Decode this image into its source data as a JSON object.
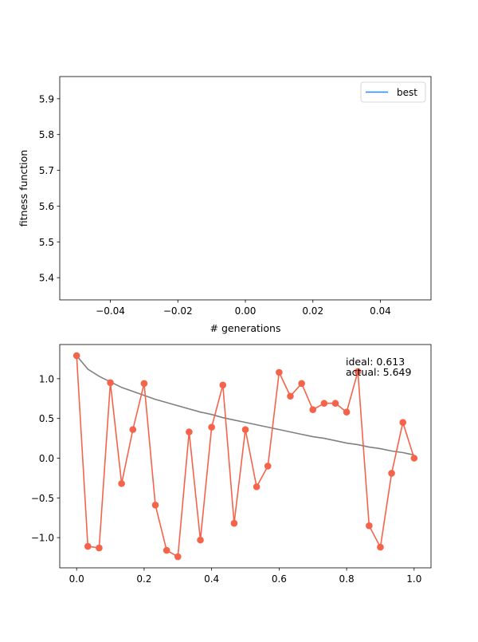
{
  "chart_data": [
    {
      "type": "line",
      "title": "",
      "xlabel": "# generations",
      "ylabel": "fitness function",
      "xlim": [
        -0.055,
        0.055
      ],
      "ylim": [
        5.338,
        5.962
      ],
      "xticks": [
        -0.04,
        -0.02,
        0.0,
        0.02,
        0.04
      ],
      "xtick_labels": [
        "−0.04",
        "−0.02",
        "0.00",
        "0.02",
        "0.04"
      ],
      "yticks": [
        5.4,
        5.5,
        5.6,
        5.7,
        5.8,
        5.9
      ],
      "ytick_labels": [
        "5.4",
        "5.5",
        "5.6",
        "5.7",
        "5.8",
        "5.9"
      ],
      "grid": false,
      "legend_position": "upper-right",
      "series": [
        {
          "name": "best",
          "color": "#1f8cff",
          "x": [],
          "y": []
        }
      ]
    },
    {
      "type": "line",
      "title": "",
      "xlabel": "",
      "ylabel": "",
      "xlim": [
        -0.05,
        1.05
      ],
      "ylim": [
        -1.38,
        1.43
      ],
      "xticks": [
        0.0,
        0.2,
        0.4,
        0.6,
        0.8,
        1.0
      ],
      "xtick_labels": [
        "0.0",
        "0.2",
        "0.4",
        "0.6",
        "0.8",
        "1.0"
      ],
      "yticks": [
        -1.0,
        -0.5,
        0.0,
        0.5,
        1.0
      ],
      "ytick_labels": [
        "−1.0",
        "−0.5",
        "0.0",
        "0.5",
        "1.0"
      ],
      "grid": false,
      "annotations": [
        "ideal: 0.613",
        "actual: 5.649"
      ],
      "series": [
        {
          "color": "#808080",
          "marker": "none",
          "x": [
            0.0,
            0.0333,
            0.0667,
            0.1,
            0.1333,
            0.1667,
            0.2,
            0.2333,
            0.2667,
            0.3,
            0.3333,
            0.3667,
            0.4,
            0.4333,
            0.4667,
            0.5,
            0.5333,
            0.5667,
            0.6,
            0.6333,
            0.6667,
            0.7,
            0.7333,
            0.7667,
            0.8,
            0.8333,
            0.8667,
            0.9,
            0.9333,
            0.9667,
            1.0
          ],
          "y": [
            1.29,
            1.12,
            1.03,
            0.96,
            0.89,
            0.84,
            0.79,
            0.74,
            0.7,
            0.66,
            0.62,
            0.58,
            0.55,
            0.51,
            0.48,
            0.45,
            0.42,
            0.39,
            0.36,
            0.33,
            0.3,
            0.27,
            0.25,
            0.22,
            0.19,
            0.17,
            0.14,
            0.12,
            0.09,
            0.07,
            0.04
          ]
        },
        {
          "color": "#f4634a",
          "marker": "circle",
          "x": [
            0.0,
            0.0333,
            0.0667,
            0.1,
            0.1333,
            0.1667,
            0.2,
            0.2333,
            0.2667,
            0.3,
            0.3333,
            0.3667,
            0.4,
            0.4333,
            0.4667,
            0.5,
            0.5333,
            0.5667,
            0.6,
            0.6333,
            0.6667,
            0.7,
            0.7333,
            0.7667,
            0.8,
            0.8333,
            0.8667,
            0.9,
            0.9333,
            0.9667,
            1.0
          ],
          "y": [
            1.29,
            -1.11,
            -1.13,
            0.95,
            -0.32,
            0.36,
            0.94,
            -0.59,
            -1.16,
            -1.24,
            0.33,
            -1.03,
            0.39,
            0.92,
            -0.82,
            0.36,
            -0.36,
            -0.1,
            1.08,
            0.78,
            0.94,
            0.61,
            0.69,
            0.69,
            0.58,
            1.09,
            -0.85,
            -1.12,
            -0.19,
            0.45,
            0.0
          ]
        }
      ]
    }
  ]
}
